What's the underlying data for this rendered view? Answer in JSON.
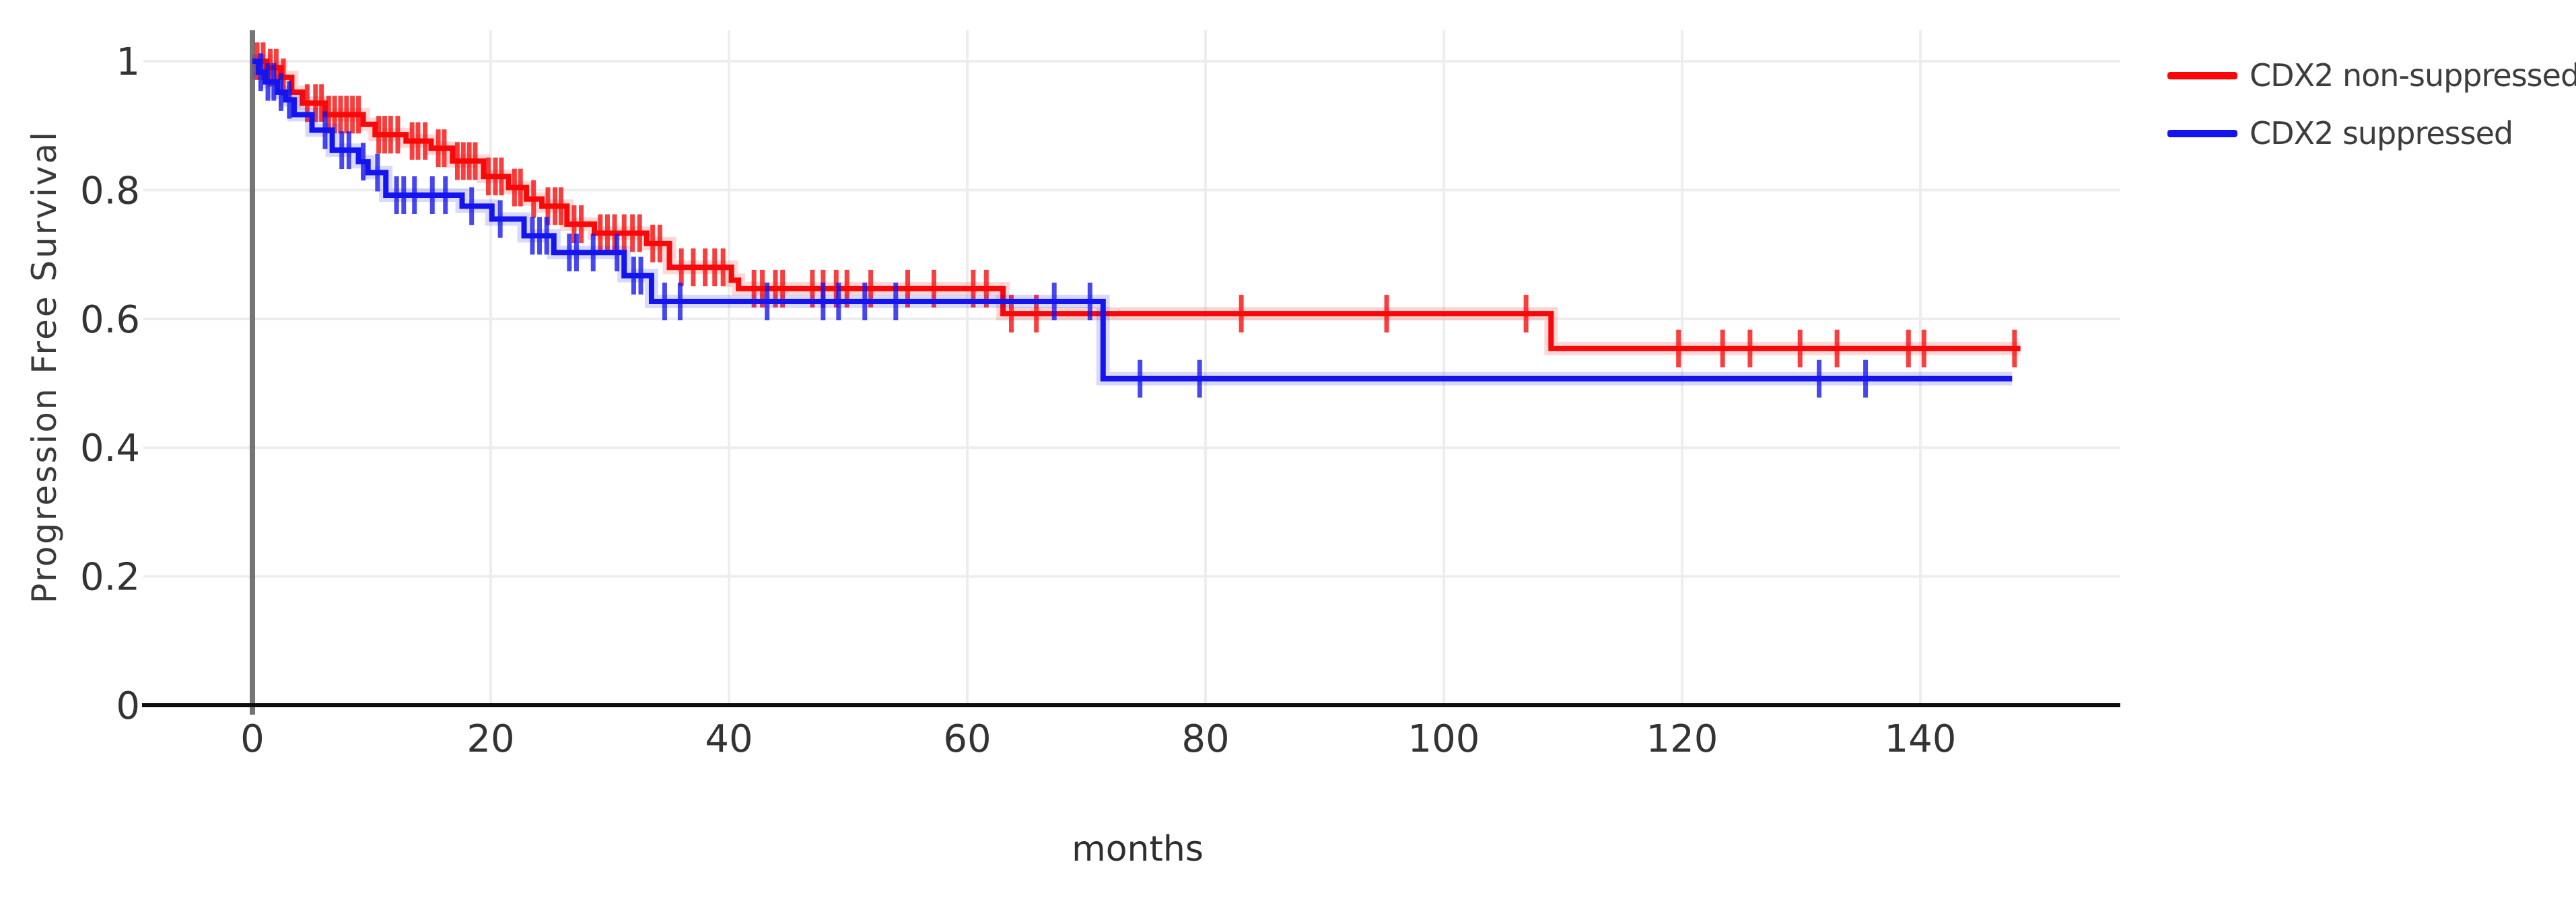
{
  "chart_data": {
    "type": "line",
    "subtype": "kaplan-meier-step-survival",
    "title": "",
    "xlabel": "months",
    "ylabel": "Progression Free Survival",
    "xlim": [
      -9,
      157
    ],
    "ylim": [
      0,
      1.05
    ],
    "x_ticks": [
      0,
      20,
      40,
      60,
      80,
      100,
      120,
      140
    ],
    "y_ticks": [
      0,
      0.2,
      0.4,
      0.6,
      0.8,
      1
    ],
    "grid": true,
    "legend_position": "top-right-outside",
    "colors": {
      "grid": "#ededed",
      "zero_line": "#757575",
      "axis": "#0d0d0d",
      "tick_text": "#333333",
      "red": "#f80808",
      "blue": "#1414ef"
    },
    "series": [
      {
        "name": "CDX2 non-suppressed",
        "color": "#f80808",
        "steps": [
          [
            0,
            1.0
          ],
          [
            1.2,
            0.99
          ],
          [
            2.4,
            0.975
          ],
          [
            3.3,
            0.952
          ],
          [
            4.2,
            0.935
          ],
          [
            6.1,
            0.917
          ],
          [
            9.3,
            0.902
          ],
          [
            10.3,
            0.886
          ],
          [
            12.9,
            0.876
          ],
          [
            15.0,
            0.865
          ],
          [
            16.8,
            0.845
          ],
          [
            19.4,
            0.821
          ],
          [
            21.5,
            0.804
          ],
          [
            23.0,
            0.786
          ],
          [
            24.3,
            0.775
          ],
          [
            26.4,
            0.747
          ],
          [
            28.7,
            0.733
          ],
          [
            33.1,
            0.717
          ],
          [
            35.0,
            0.68
          ],
          [
            40.2,
            0.66
          ],
          [
            40.8,
            0.647
          ],
          [
            63.0,
            0.608
          ],
          [
            109.0,
            0.554
          ]
        ],
        "end_time": 148.4,
        "censor_times": [
          0.4,
          0.9,
          1.5,
          2.0,
          2.6,
          4.6,
          5.3,
          5.8,
          6.4,
          6.9,
          7.4,
          7.9,
          8.4,
          8.9,
          10.6,
          11.1,
          11.6,
          12.2,
          13.4,
          13.9,
          14.5,
          15.6,
          16.1,
          17.2,
          17.7,
          18.2,
          18.7,
          19.8,
          20.4,
          20.9,
          22.0,
          22.5,
          23.6,
          24.8,
          25.4,
          25.9,
          27.0,
          27.6,
          29.2,
          29.8,
          30.4,
          31.2,
          31.9,
          32.5,
          33.6,
          34.2,
          36.0,
          37.0,
          38.0,
          38.8,
          39.5,
          42.1,
          42.8,
          43.9,
          44.5,
          47.0,
          47.9,
          49.0,
          49.9,
          51.9,
          55.0,
          57.2,
          60.5,
          61.6,
          63.7,
          65.8,
          83.0,
          95.2,
          106.9,
          119.7,
          123.4,
          125.7,
          129.9,
          133.0,
          139.0,
          140.3,
          147.9
        ]
      },
      {
        "name": "CDX2 suppressed",
        "color": "#1414ef",
        "steps": [
          [
            0,
            1.0
          ],
          [
            0.5,
            0.983
          ],
          [
            1.1,
            0.968
          ],
          [
            2.1,
            0.952
          ],
          [
            2.8,
            0.94
          ],
          [
            3.5,
            0.917
          ],
          [
            5.0,
            0.893
          ],
          [
            6.7,
            0.862
          ],
          [
            8.9,
            0.844
          ],
          [
            9.7,
            0.827
          ],
          [
            11.2,
            0.792
          ],
          [
            17.6,
            0.775
          ],
          [
            20.1,
            0.755
          ],
          [
            22.8,
            0.729
          ],
          [
            25.3,
            0.703
          ],
          [
            31.2,
            0.667
          ],
          [
            33.5,
            0.627
          ],
          [
            71.4,
            0.507
          ]
        ],
        "end_time": 147.7,
        "censor_times": [
          0.7,
          1.3,
          1.8,
          2.4,
          3.1,
          6.1,
          7.5,
          8.1,
          9.3,
          10.5,
          12.1,
          12.7,
          13.6,
          15.1,
          16.2,
          18.4,
          20.8,
          23.5,
          24.1,
          24.7,
          26.6,
          27.2,
          28.6,
          30.6,
          32.0,
          32.6,
          34.6,
          35.9,
          43.2,
          47.9,
          49.2,
          51.4,
          54.0,
          67.3,
          70.3,
          74.5,
          79.5,
          131.5,
          135.4
        ]
      }
    ]
  }
}
